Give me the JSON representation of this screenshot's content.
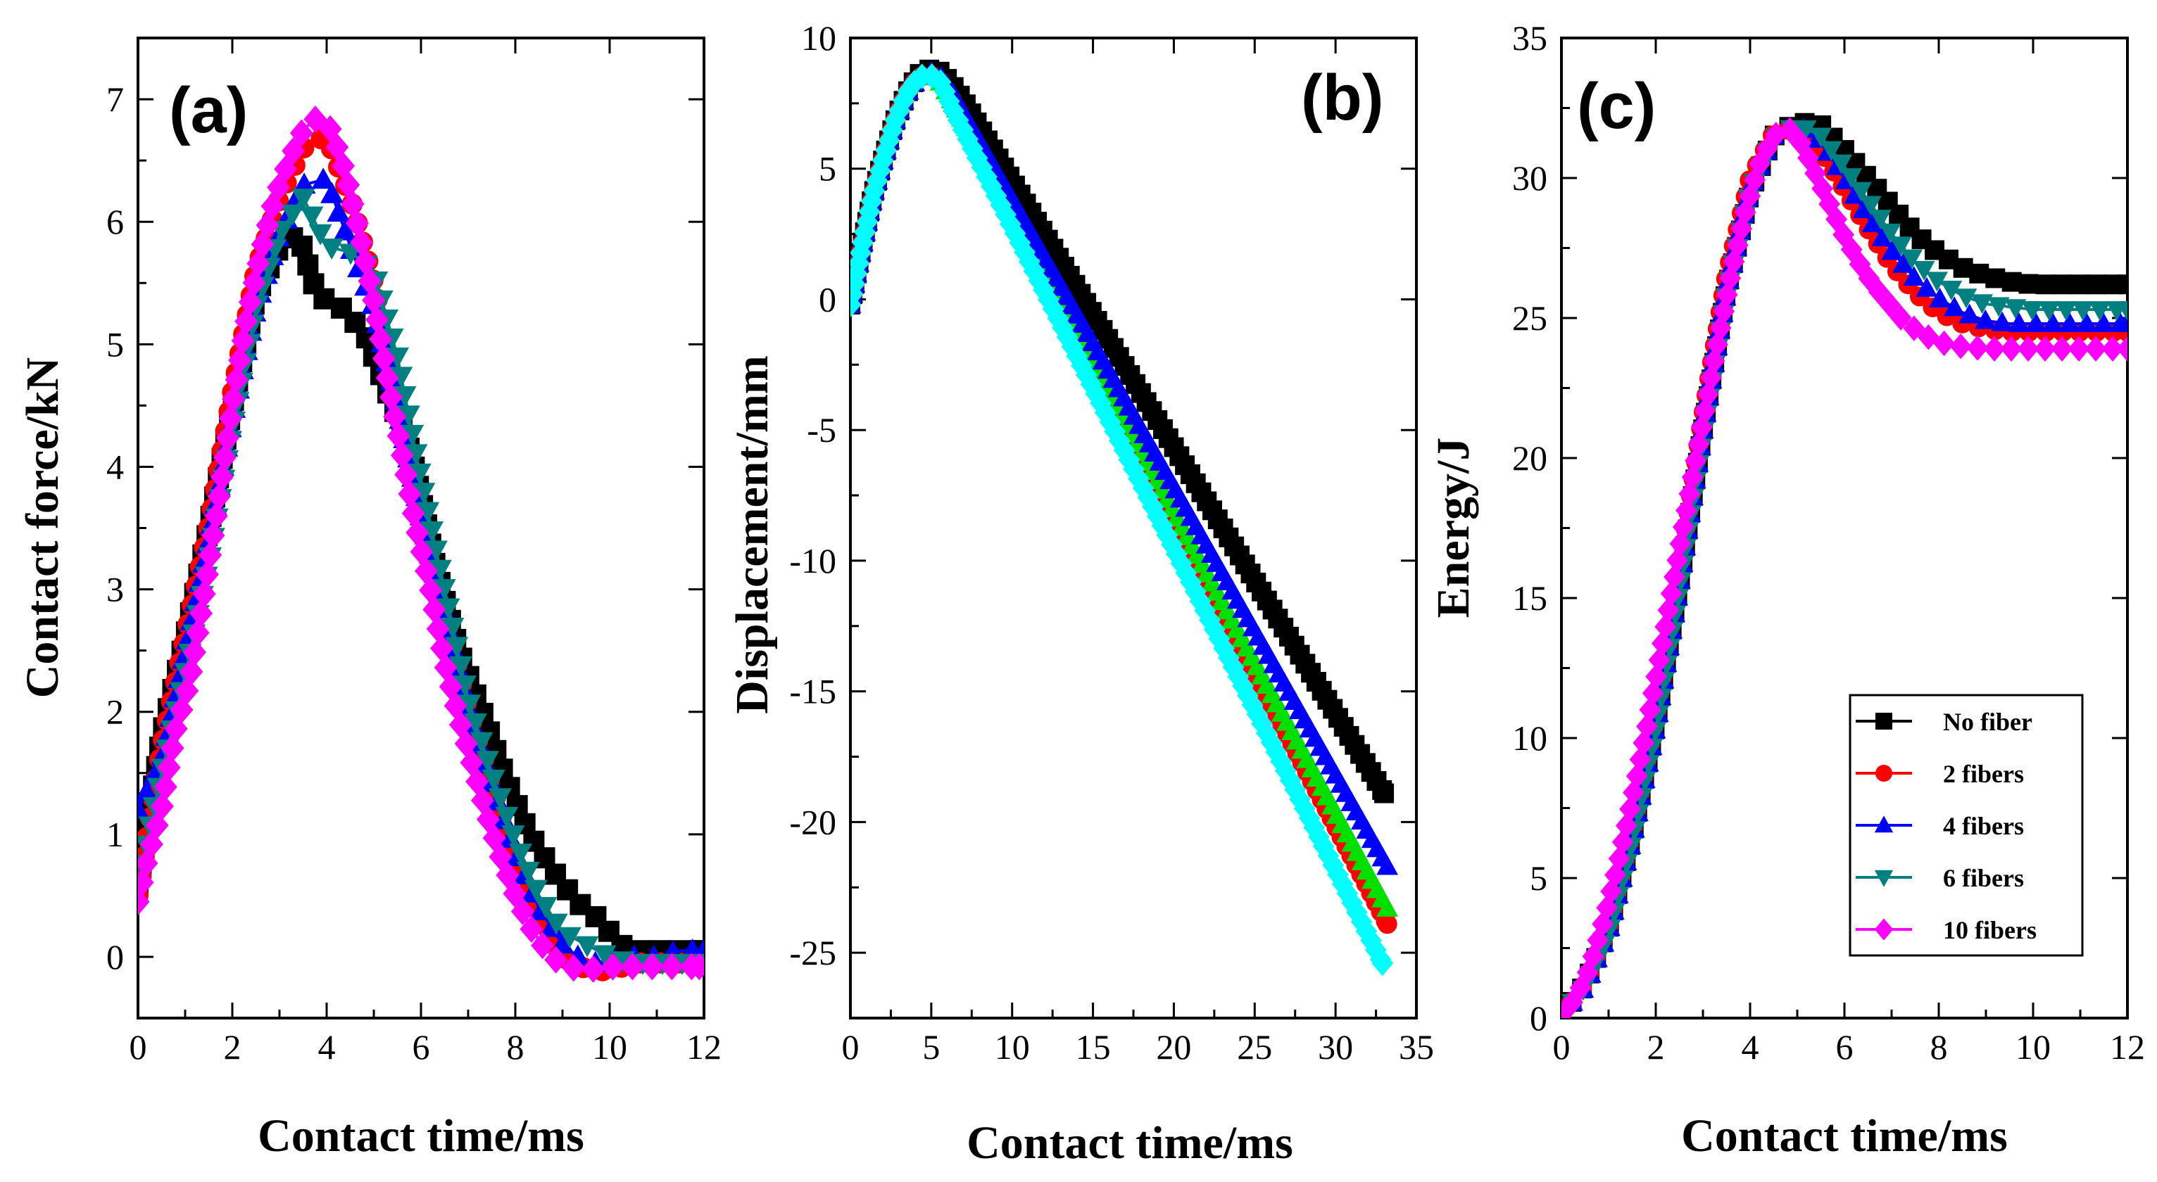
{
  "colors": {
    "no_fiber": "#000000",
    "fibers_2": "#ff0000",
    "fibers_4": "#0000ff",
    "fibers_6": "#008080",
    "fibers_10": "#ff00ff",
    "green_curve": "#00e000",
    "cyan_curve": "#00ffff"
  },
  "chart_data": [
    {
      "id": "a",
      "type": "line",
      "panel_label": "(a)",
      "xlabel": "Contact time/ms",
      "ylabel": "Contact force/kN",
      "xlim": [
        0,
        12
      ],
      "ylim": [
        -0.5,
        7.5
      ],
      "xticks": [
        0,
        2,
        4,
        6,
        8,
        10,
        12
      ],
      "yticks": [
        0,
        1,
        2,
        3,
        4,
        5,
        6,
        7
      ],
      "series": [
        {
          "name": "No fiber",
          "marker": "square",
          "color": "#000000",
          "x": [
            0,
            0.5,
            1.0,
            1.5,
            2.0,
            2.5,
            3.0,
            3.4,
            3.8,
            4.3,
            4.8,
            5.3,
            5.8,
            6.3,
            6.8,
            7.3,
            7.8,
            8.3,
            8.8,
            9.3,
            9.8,
            10.2,
            10.6,
            11.0,
            11.5,
            12.0
          ],
          "y": [
            0.6,
            1.8,
            2.6,
            3.5,
            4.5,
            5.4,
            5.8,
            5.9,
            5.4,
            5.3,
            5.1,
            4.6,
            4.1,
            3.2,
            2.5,
            2.0,
            1.45,
            1.0,
            0.7,
            0.45,
            0.3,
            0.1,
            0.05,
            0.05,
            0.05,
            0.05
          ]
        },
        {
          "name": "2  fibers",
          "marker": "circle",
          "color": "#ff0000",
          "x": [
            0,
            0.5,
            1.0,
            1.5,
            2.0,
            2.5,
            3.0,
            3.5,
            4.0,
            4.5,
            5.0,
            5.5,
            6.0,
            6.5,
            7.0,
            7.5,
            8.0,
            8.5,
            9.0,
            9.5,
            10.0,
            10.5,
            11.0,
            11.5,
            12.0
          ],
          "y": [
            0.5,
            1.7,
            2.6,
            3.5,
            4.6,
            5.6,
            6.2,
            6.6,
            6.7,
            6.2,
            5.5,
            4.6,
            3.6,
            2.8,
            2.0,
            1.4,
            0.8,
            0.35,
            0.0,
            -0.1,
            -0.12,
            -0.05,
            -0.05,
            -0.05,
            -0.05
          ]
        },
        {
          "name": "4 fibers",
          "marker": "triangle-up",
          "color": "#0000ff",
          "x": [
            0,
            0.5,
            1.0,
            1.5,
            2.0,
            2.5,
            3.0,
            3.5,
            4.0,
            4.5,
            5.0,
            5.5,
            6.0,
            6.5,
            7.0,
            7.5,
            8.0,
            8.5,
            9.0,
            9.5,
            10.0,
            10.5,
            11.0,
            11.5,
            12.0
          ],
          "y": [
            1.2,
            1.6,
            2.5,
            3.4,
            4.4,
            5.3,
            5.9,
            6.3,
            6.35,
            5.8,
            5.3,
            4.5,
            3.6,
            2.8,
            2.0,
            1.4,
            0.85,
            0.4,
            0.1,
            -0.05,
            -0.05,
            0.0,
            0.0,
            0.05,
            0.05
          ]
        },
        {
          "name": "6 fibers",
          "marker": "triangle-down",
          "color": "#008080",
          "x": [
            0,
            0.5,
            1.0,
            1.5,
            2.0,
            2.5,
            3.0,
            3.5,
            4.0,
            4.5,
            5.0,
            5.5,
            6.0,
            6.5,
            7.0,
            7.5,
            8.0,
            8.5,
            9.0,
            9.5,
            10.0,
            10.5,
            11.0,
            11.5,
            12.0
          ],
          "y": [
            0.6,
            1.5,
            2.3,
            3.2,
            4.3,
            5.3,
            5.9,
            6.2,
            5.8,
            5.75,
            5.6,
            4.9,
            3.9,
            3.0,
            2.1,
            1.5,
            0.95,
            0.5,
            0.2,
            0.1,
            0.0,
            -0.05,
            -0.05,
            -0.05,
            -0.05
          ]
        },
        {
          "name": "10 fibers",
          "marker": "diamond",
          "color": "#ff00ff",
          "x": [
            0,
            0.2,
            0.5,
            0.8,
            1.1,
            1.4,
            1.7,
            2.0,
            2.3,
            2.6,
            2.9,
            3.2,
            3.5,
            3.8,
            4.1,
            4.4,
            4.7,
            5.0,
            5.3,
            5.6,
            5.9,
            6.2,
            6.5,
            6.8,
            7.1,
            7.4,
            7.7,
            8.0,
            8.3,
            8.6,
            8.9,
            9.2,
            9.5,
            9.8,
            10.1,
            10.4,
            10.7,
            11.0,
            11.3,
            11.6,
            11.9
          ],
          "y": [
            0.45,
            0.8,
            1.2,
            1.85,
            2.25,
            2.95,
            3.7,
            4.5,
            5.2,
            5.75,
            6.2,
            6.5,
            6.75,
            6.85,
            6.75,
            6.4,
            5.9,
            5.35,
            4.7,
            4.1,
            3.5,
            3.0,
            2.4,
            1.95,
            1.55,
            1.15,
            0.8,
            0.5,
            0.25,
            0.08,
            -0.04,
            -0.09,
            -0.1,
            -0.1,
            -0.08,
            -0.08,
            -0.08,
            -0.08,
            -0.08,
            -0.08,
            -0.08
          ]
        }
      ]
    },
    {
      "id": "b",
      "type": "line",
      "panel_label": "(b)",
      "xlabel": "Contact time/ms",
      "ylabel": "Displacement/mm",
      "xlim": [
        0,
        35
      ],
      "ylim": [
        -27.5,
        10
      ],
      "xticks": [
        0,
        5,
        10,
        15,
        20,
        25,
        30,
        35
      ],
      "yticks": [
        10,
        5,
        0,
        -5,
        -10,
        -15,
        -20,
        -25
      ],
      "series": [
        {
          "name": "No fiber",
          "marker": "square",
          "color": "#000000",
          "x": [
            0,
            0.7,
            1.4,
            2.1,
            2.8,
            3.5,
            4.2,
            4.9,
            5.6,
            6.3,
            7.0,
            33
          ],
          "y": [
            -0.2,
            2.0,
            4.0,
            5.5,
            6.9,
            7.9,
            8.6,
            8.8,
            8.7,
            8.2,
            7.6,
            -18.9
          ]
        },
        {
          "name": "2  fibers",
          "marker": "circle",
          "color": "#ff0000",
          "x": [
            0,
            0.7,
            1.4,
            2.1,
            2.8,
            3.5,
            4.2,
            4.9,
            5.6,
            6.3,
            33.2
          ],
          "y": [
            -0.2,
            2.0,
            4.0,
            5.5,
            6.9,
            7.9,
            8.5,
            8.6,
            8.3,
            7.6,
            -23.9
          ]
        },
        {
          "name": "green",
          "marker": "triangle-up",
          "color": "#00e000",
          "x": [
            0,
            0.7,
            1.4,
            2.1,
            2.8,
            3.5,
            4.2,
            4.9,
            5.6,
            6.3,
            33.2
          ],
          "y": [
            -0.2,
            2.0,
            4.0,
            5.5,
            6.9,
            7.9,
            8.5,
            8.6,
            8.3,
            7.6,
            -23.3
          ]
        },
        {
          "name": "4 fibers",
          "marker": "triangle-up",
          "color": "#0000ff",
          "x": [
            0,
            0.7,
            1.4,
            2.1,
            2.8,
            3.5,
            4.2,
            4.9,
            5.6,
            6.3,
            33.2
          ],
          "y": [
            -0.2,
            2.0,
            4.0,
            5.5,
            6.9,
            7.9,
            8.5,
            8.7,
            8.5,
            7.9,
            -21.7
          ]
        },
        {
          "name": "cyan",
          "marker": "diamond",
          "color": "#00ffff",
          "x": [
            0,
            0.7,
            1.4,
            2.1,
            2.8,
            3.5,
            4.2,
            4.9,
            5.6,
            6.3,
            32.9
          ],
          "y": [
            -0.2,
            2.0,
            4.0,
            5.5,
            6.9,
            7.9,
            8.5,
            8.6,
            8.3,
            7.3,
            -25.4
          ]
        }
      ]
    },
    {
      "id": "c",
      "type": "line",
      "panel_label": "(c)",
      "xlabel": "Contact time/ms",
      "ylabel": "Energy/J",
      "xlim": [
        0,
        12
      ],
      "ylim": [
        0,
        35
      ],
      "xticks": [
        0,
        2,
        4,
        6,
        8,
        10,
        12
      ],
      "yticks": [
        0,
        5,
        10,
        15,
        20,
        25,
        30,
        35
      ],
      "legend": {
        "location": "bottom-right",
        "entries": [
          "No fiber",
          "2  fibers",
          "4 fibers",
          "6 fibers",
          "10 fibers"
        ]
      },
      "series": [
        {
          "name": "No fiber",
          "marker": "square",
          "color": "#000000",
          "x": [
            0,
            0.5,
            1.0,
            1.5,
            2.0,
            2.5,
            3.0,
            3.5,
            4.0,
            4.5,
            5.0,
            5.5,
            6.0,
            6.5,
            7.0,
            7.5,
            8.0,
            8.5,
            9.0,
            9.5,
            10.0,
            10.5,
            11.0,
            11.5,
            12.0
          ],
          "y": [
            0.1,
            1.2,
            3.2,
            6.5,
            10.5,
            15.5,
            21.0,
            26.0,
            29.5,
            31.5,
            32.0,
            31.9,
            31.0,
            30.0,
            29.0,
            28.0,
            27.3,
            26.8,
            26.5,
            26.3,
            26.2,
            26.2,
            26.2,
            26.2,
            26.2
          ]
        },
        {
          "name": "2  fibers",
          "marker": "circle",
          "color": "#ff0000",
          "x": [
            0,
            0.5,
            1.0,
            1.5,
            2.0,
            2.5,
            3.0,
            3.5,
            4.0,
            4.5,
            5.0,
            5.5,
            6.0,
            6.5,
            7.0,
            7.5,
            8.0,
            8.5,
            9.0,
            9.5,
            10.0,
            10.5,
            11.0,
            11.5,
            12.0
          ],
          "y": [
            0.1,
            1.2,
            3.3,
            6.7,
            10.8,
            16.0,
            21.5,
            26.5,
            30.0,
            31.6,
            31.8,
            31.0,
            29.6,
            28.2,
            26.9,
            25.9,
            25.2,
            24.8,
            24.6,
            24.5,
            24.5,
            24.5,
            24.5,
            24.5,
            24.5
          ]
        },
        {
          "name": "4 fibers",
          "marker": "triangle-up",
          "color": "#0000ff",
          "x": [
            0,
            0.5,
            1.0,
            1.5,
            2.0,
            2.5,
            3.0,
            3.5,
            4.0,
            4.5,
            5.0,
            5.5,
            6.0,
            6.5,
            7.0,
            7.5,
            8.0,
            8.5,
            9.0,
            9.5,
            10.0,
            10.5,
            11.0,
            11.5,
            12.0
          ],
          "y": [
            0.1,
            1.1,
            3.1,
            6.4,
            10.4,
            15.5,
            21.0,
            26.0,
            29.6,
            31.5,
            31.9,
            31.3,
            30.0,
            28.6,
            27.4,
            26.4,
            25.7,
            25.2,
            24.9,
            24.8,
            24.8,
            24.8,
            24.8,
            24.8,
            24.8
          ]
        },
        {
          "name": "6 fibers",
          "marker": "triangle-down",
          "color": "#008080",
          "x": [
            0,
            0.5,
            1.0,
            1.5,
            2.0,
            2.5,
            3.0,
            3.5,
            4.0,
            4.5,
            5.0,
            5.5,
            6.0,
            6.5,
            7.0,
            7.5,
            8.0,
            8.5,
            9.0,
            9.5,
            10.0,
            10.5,
            11.0,
            11.5,
            12.0
          ],
          "y": [
            0.1,
            1.1,
            3.0,
            6.3,
            10.3,
            15.3,
            20.8,
            25.8,
            29.5,
            31.4,
            31.9,
            31.5,
            30.4,
            29.2,
            28.0,
            27.0,
            26.3,
            25.8,
            25.5,
            25.4,
            25.3,
            25.3,
            25.3,
            25.3,
            25.3
          ]
        },
        {
          "name": "10 fibers",
          "marker": "diamond",
          "color": "#ff00ff",
          "x": [
            0,
            0.3,
            0.6,
            0.9,
            1.2,
            1.5,
            1.8,
            2.1,
            2.4,
            2.7,
            3.0,
            3.3,
            3.6,
            3.9,
            4.2,
            4.5,
            4.8,
            5.1,
            5.4,
            5.7,
            6.0,
            6.3,
            6.6,
            6.9,
            7.2,
            7.5,
            7.8,
            8.1,
            8.4,
            8.7,
            9.0,
            9.3,
            9.6,
            9.9,
            10.2,
            10.5,
            10.8,
            11.1,
            11.4,
            11.7,
            12.0
          ],
          "y": [
            0.1,
            0.7,
            1.8,
            3.5,
            5.5,
            7.8,
            10.3,
            13.0,
            15.8,
            18.6,
            21.3,
            24.0,
            26.6,
            28.8,
            30.5,
            31.5,
            31.8,
            31.2,
            30.1,
            29.0,
            27.9,
            27.0,
            26.2,
            25.6,
            25.0,
            24.6,
            24.3,
            24.1,
            24.0,
            23.95,
            23.9,
            23.9,
            23.9,
            23.9,
            23.9,
            23.9,
            23.9,
            23.9,
            23.9,
            23.9,
            23.9
          ]
        }
      ]
    }
  ]
}
